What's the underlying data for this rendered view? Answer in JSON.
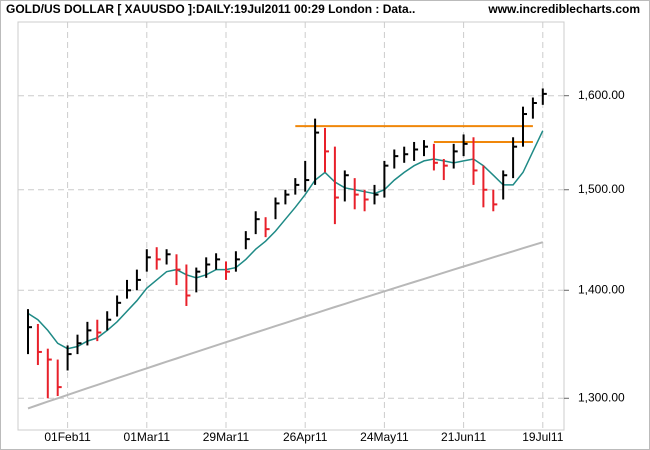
{
  "chart_data": {
    "type": "hlc",
    "title": "GOLD/US DOLLAR [ XAUUSDO ]:DAILY:19Jul2011 00:29 London : Data..",
    "source": "www.incrediblecharts.com",
    "log_scale": true,
    "grid": true,
    "categories": [
      null,
      null,
      null,
      null,
      "01Feb11",
      null,
      null,
      null,
      null,
      null,
      null,
      null,
      "01Mar11",
      null,
      null,
      null,
      null,
      null,
      null,
      null,
      "29Mar11",
      null,
      null,
      null,
      null,
      null,
      null,
      null,
      "26Apr11",
      null,
      null,
      null,
      null,
      null,
      null,
      null,
      "24May11",
      null,
      null,
      null,
      null,
      null,
      null,
      null,
      "21Jun11",
      null,
      null,
      null,
      null,
      null,
      null,
      null,
      "19Jul11"
    ],
    "high": [
      1382,
      1368,
      1345,
      1335,
      1348,
      1358,
      1370,
      1372,
      1380,
      1395,
      1410,
      1420,
      1440,
      1442,
      1440,
      1435,
      1425,
      1422,
      1432,
      1436,
      1428,
      1438,
      1458,
      1478,
      1472,
      1492,
      1500,
      1512,
      1530,
      1575,
      1565,
      1545,
      1520,
      1512,
      1500,
      1505,
      1530,
      1542,
      1545,
      1550,
      1552,
      1548,
      1532,
      1548,
      1558,
      1555,
      1525,
      1500,
      1520,
      1555,
      1588,
      1598,
      1608
    ],
    "low": [
      1340,
      1330,
      1300,
      1302,
      1325,
      1340,
      1348,
      1352,
      1362,
      1375,
      1392,
      1400,
      1418,
      1420,
      1425,
      1405,
      1385,
      1398,
      1412,
      1420,
      1410,
      1418,
      1440,
      1455,
      1452,
      1470,
      1485,
      1495,
      1498,
      1505,
      1518,
      1465,
      1488,
      1480,
      1478,
      1485,
      1492,
      1522,
      1528,
      1530,
      1535,
      1520,
      1510,
      1522,
      1535,
      1505,
      1482,
      1478,
      1490,
      1512,
      1545,
      1575,
      1590
    ],
    "close": [
      1365,
      1342,
      1335,
      1310,
      1340,
      1350,
      1362,
      1360,
      1372,
      1388,
      1400,
      1410,
      1432,
      1430,
      1435,
      1420,
      1395,
      1418,
      1425,
      1430,
      1418,
      1430,
      1450,
      1470,
      1460,
      1486,
      1495,
      1505,
      1510,
      1560,
      1540,
      1492,
      1515,
      1495,
      1490,
      1495,
      1525,
      1535,
      1537,
      1542,
      1545,
      1528,
      1525,
      1540,
      1548,
      1520,
      1500,
      1485,
      1515,
      1545,
      1580,
      1592,
      1602
    ],
    "up_color": "#000000",
    "down_color": "#e8202a",
    "series": [
      {
        "color": "#1f8a86",
        "values": [
          1378,
          1372,
          1362,
          1350,
          1345,
          1347,
          1352,
          1355,
          1362,
          1370,
          1380,
          1390,
          1402,
          1410,
          1418,
          1420,
          1415,
          1412,
          1415,
          1420,
          1420,
          1422,
          1430,
          1440,
          1448,
          1458,
          1470,
          1482,
          1495,
          1510,
          1518,
          1508,
          1502,
          1500,
          1498,
          1496,
          1500,
          1510,
          1518,
          1525,
          1530,
          1532,
          1530,
          1528,
          1530,
          1532,
          1525,
          1515,
          1505,
          1505,
          1518,
          1540,
          1562
        ]
      },
      {
        "color": "#b8b8b8",
        "values": [
          1291,
          1294,
          1297,
          1300,
          1303,
          1306,
          1309,
          1312,
          1315,
          1318,
          1321,
          1324,
          1327,
          1330,
          1333,
          1336,
          1339,
          1342,
          1345,
          1348,
          1351,
          1354,
          1357,
          1360,
          1363,
          1366,
          1369,
          1372,
          1375,
          1378,
          1381,
          1384,
          1387,
          1390,
          1393,
          1396,
          1399,
          1402,
          1405,
          1408,
          1411,
          1414,
          1417,
          1420,
          1423,
          1426,
          1429,
          1432,
          1435,
          1438,
          1441,
          1444,
          1447
        ]
      }
    ],
    "levels": [
      {
        "value": 1567,
        "color": "#f0870a"
      },
      {
        "value": 1550,
        "color": "#f0870a"
      }
    ],
    "ylim": [
      1272,
      1683
    ],
    "yticks": [
      {
        "value": 1300,
        "label": "1,300.00"
      },
      {
        "value": 1400,
        "label": "1,400.00"
      },
      {
        "value": 1500,
        "label": "1,500.00"
      },
      {
        "value": 1600,
        "label": "1,600.00"
      }
    ]
  }
}
